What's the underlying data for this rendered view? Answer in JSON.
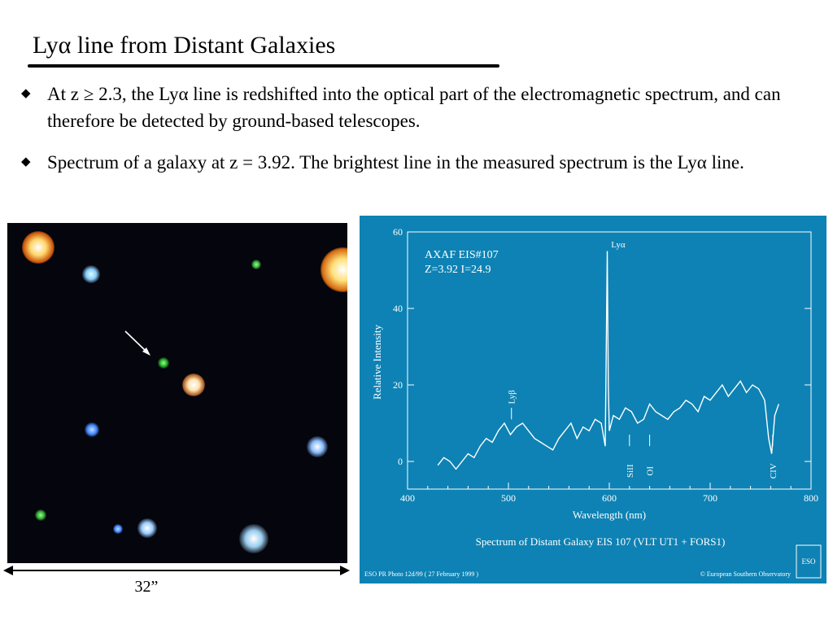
{
  "slide": {
    "title": "Lyα line from Distant Galaxies",
    "bullets": [
      {
        "icon": "diamond-bullet-icon",
        "text": "At z ≥ 2.3, the Lyα line is redshifted into the optical part of the electromagnetic spectrum, and can therefore be detected by ground-based telescopes."
      },
      {
        "icon": "diamond-bullet-icon",
        "text": "Spectrum of a galaxy at z = 3.92.  The brightest line in the measured spectrum is the Lyα line."
      }
    ],
    "image_scale_label": "32”"
  },
  "chart_data": {
    "type": "line",
    "title": "Spectrum of Distant Galaxy EIS 107  (VLT UT1 + FORS1)",
    "xlabel": "Wavelength (nm)",
    "ylabel": "Relative Intensity",
    "xlim": [
      400,
      800
    ],
    "ylim": [
      0,
      60
    ],
    "xticks": [
      "400",
      "500",
      "600",
      "700",
      "800"
    ],
    "yticks": [
      "0",
      "20",
      "40",
      "60"
    ],
    "grid": false,
    "annotations": {
      "object": "AXAF EIS#107",
      "params": "Z=3.92   I=24.9",
      "lines": [
        {
          "label": "Lyα",
          "x": 597
        },
        {
          "label": "Lyβ",
          "x": 503
        },
        {
          "label": "SiII",
          "x": 620
        },
        {
          "label": "OI",
          "x": 640
        },
        {
          "label": "CIV",
          "x": 762
        }
      ]
    },
    "credit_left": "ESO PR Photo 12d/99 ( 27 February 1999 )",
    "credit_right": "© European Southern Observatory",
    "logo_text": "ESO",
    "series": [
      {
        "x": [
          430,
          436,
          442,
          448,
          454,
          460,
          466,
          472,
          478,
          484,
          490,
          496,
          502,
          508,
          514,
          520,
          526,
          532,
          538,
          544,
          550,
          556,
          562,
          568,
          574,
          580,
          586,
          592,
          596,
          597,
          598,
          599,
          600,
          604,
          610,
          616,
          622,
          628,
          634,
          640,
          646,
          652,
          658,
          664,
          670,
          676,
          682,
          688,
          694,
          700,
          706,
          712,
          718,
          724,
          730,
          736,
          742,
          748,
          754,
          758,
          761,
          764,
          768
        ],
        "values": [
          -1,
          1,
          0,
          -2,
          0,
          2,
          1,
          4,
          6,
          5,
          8,
          10,
          7,
          9,
          10,
          8,
          6,
          5,
          4,
          3,
          6,
          8,
          10,
          6,
          9,
          8,
          11,
          10,
          4,
          30,
          55,
          20,
          8,
          12,
          11,
          14,
          13,
          10,
          11,
          15,
          13,
          12,
          11,
          13,
          14,
          16,
          15,
          13,
          17,
          16,
          18,
          20,
          17,
          19,
          21,
          18,
          20,
          19,
          16,
          6,
          2,
          12,
          15
        ]
      }
    ]
  }
}
